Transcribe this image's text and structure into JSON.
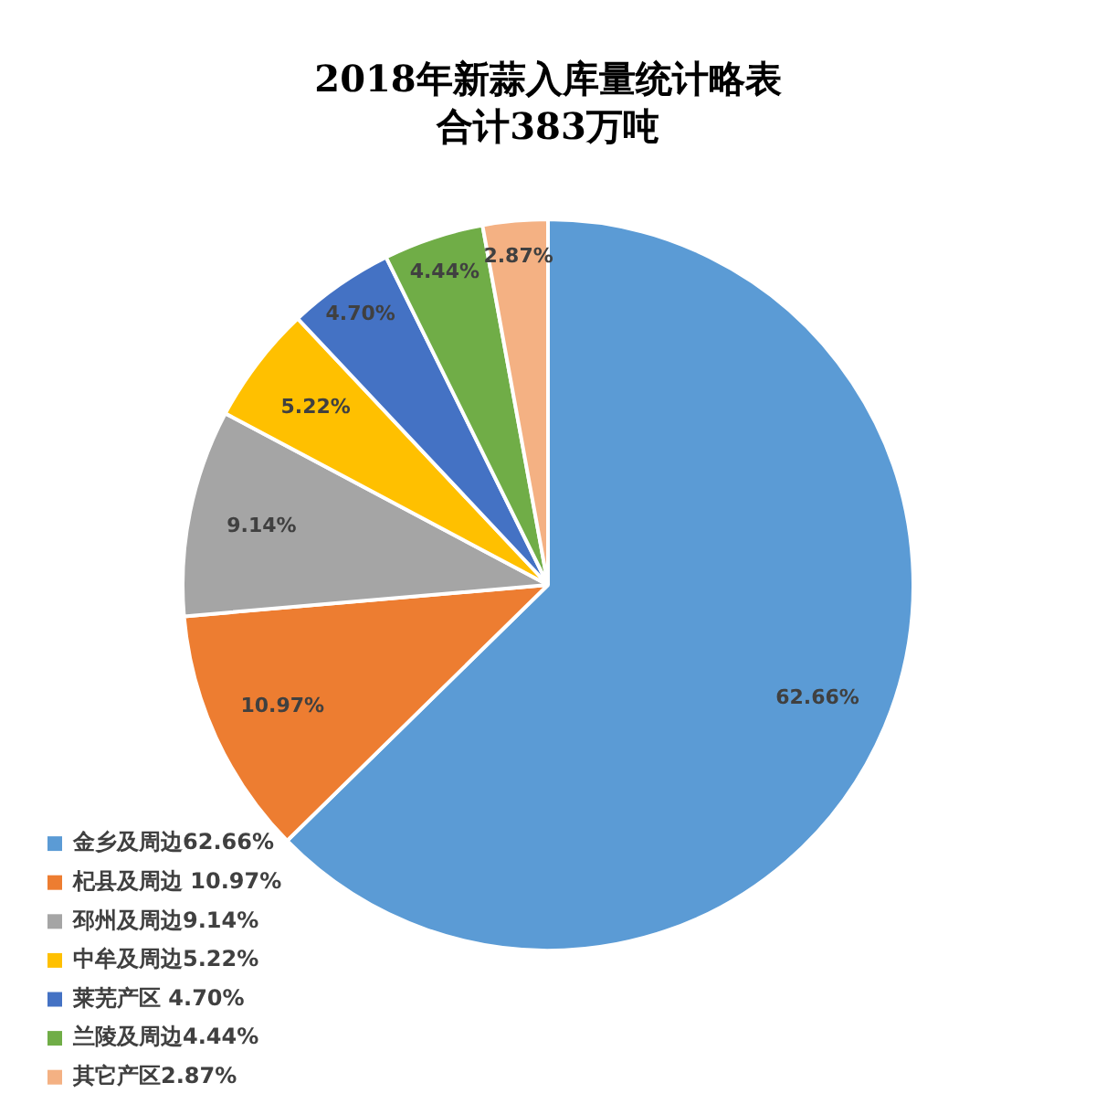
{
  "chart_data": {
    "type": "pie",
    "title": "2018年新蒜入库量统计略表",
    "subtitle": "合计383万吨",
    "categories": [
      "金乡及周边62.66%",
      "杞县及周边 10.97%",
      "邳州及周边9.14%",
      "中牟及周边5.22%",
      "莱芜产区 4.70%",
      "兰陵及周边4.44%",
      "其它产区2.87%"
    ],
    "values": [
      62.66,
      10.97,
      9.14,
      5.22,
      4.7,
      4.44,
      2.87
    ],
    "colors": [
      "#5b9bd5",
      "#ed7d31",
      "#a5a5a5",
      "#ffc000",
      "#4472c4",
      "#70ad47",
      "#f4b183"
    ],
    "value_labels": [
      "62.66%",
      "10.97%",
      "9.14%",
      "5.22%",
      "4.70%",
      "4.44%",
      "2.87%"
    ],
    "legend": "bottom left"
  }
}
